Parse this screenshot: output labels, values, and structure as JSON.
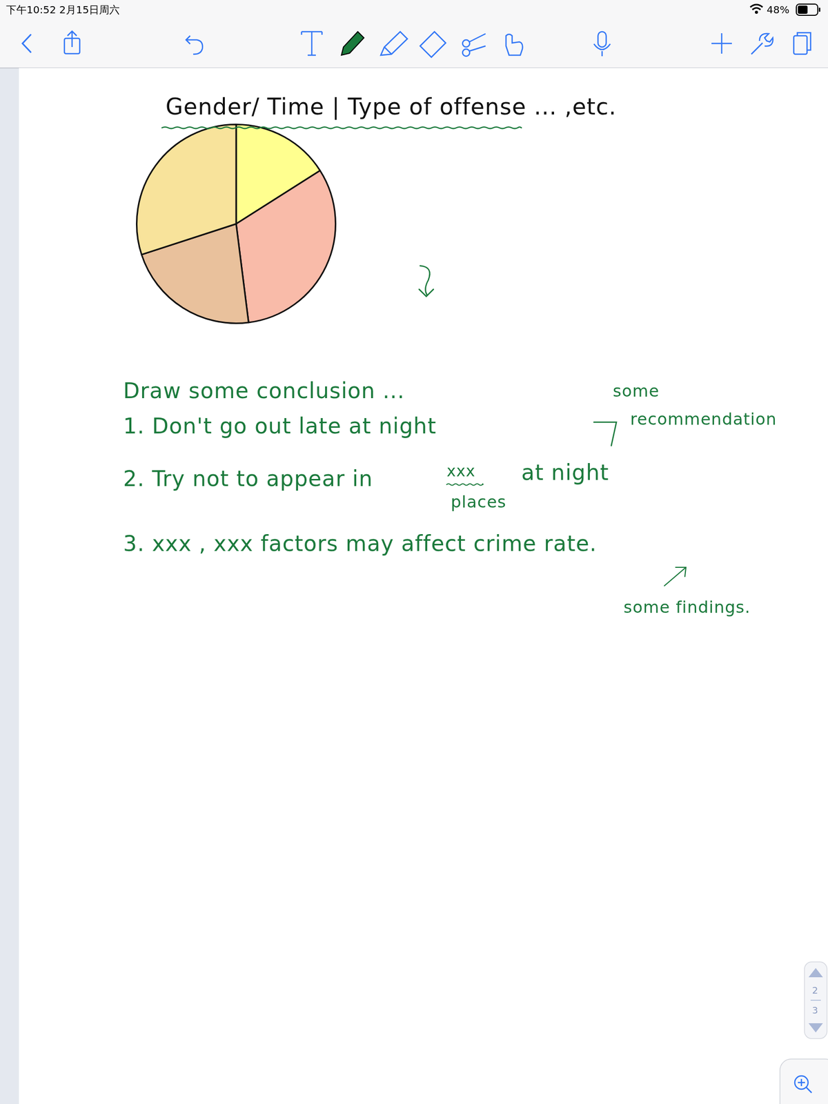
{
  "status_bar": {
    "time": "下午10:52",
    "date": "2月15日周六",
    "battery": "48%"
  },
  "title": "Gender/ Time | Type of offense ... ,etc.",
  "chart_data": {
    "type": "pie",
    "values": [
      16,
      32,
      22,
      30
    ],
    "colors": [
      "#ffff8f",
      "#f9bba9",
      "#e9c19c",
      "#f8e39b"
    ]
  },
  "conclusions": {
    "heading": "Draw some conclusion ...",
    "items": [
      {
        "text": "1. Don't go out late at night"
      },
      {
        "text": "2. Try not to appear in",
        "placeholder": "xxx",
        "placeholder_note": "places",
        "text_after": "at night"
      },
      {
        "text": "3. xxx , xxx factors may affect crime rate."
      }
    ]
  },
  "annotations": {
    "recommendation": [
      "some",
      "recommendation"
    ],
    "findings": "some findings."
  },
  "page_indicator": {
    "current": "2",
    "total": "3"
  }
}
